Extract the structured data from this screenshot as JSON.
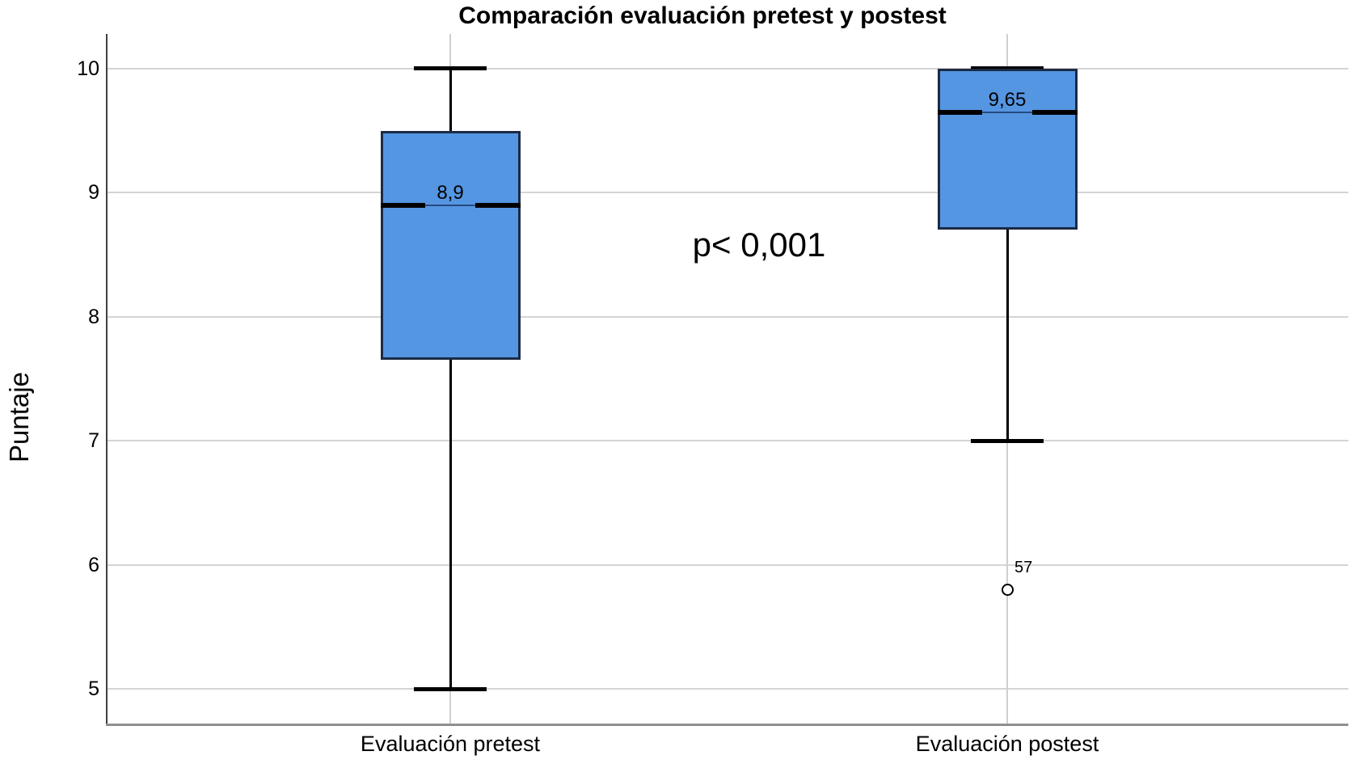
{
  "title": "Comparación evaluación pretest y postest",
  "chart_data": {
    "type": "boxplot",
    "title": "Comparación evaluación pretest y postest",
    "ylabel": "Puntaje",
    "xlabel": "",
    "annotation": "p< 0,001",
    "ylim": [
      4.72,
      10.28
    ],
    "yticks": [
      10,
      9,
      8,
      7,
      6,
      5
    ],
    "grid": "horizontal gridlines + one light vertical line per category",
    "legend": "none",
    "categories": [
      "Evaluación pretest",
      "Evaluación postest"
    ],
    "series": [
      {
        "category": "Evaluación pretest",
        "whisker_low": 5.0,
        "q1": 7.65,
        "median": 8.9,
        "q3": 9.5,
        "whisker_high": 10.0,
        "median_label": "8,9",
        "outliers": []
      },
      {
        "category": "Evaluación postest",
        "whisker_low": 7.0,
        "q1": 8.7,
        "median": 9.65,
        "q3": 10.0,
        "whisker_high": 10.0,
        "median_label": "9,65",
        "outliers": [
          {
            "value": 5.8,
            "label": "57"
          }
        ]
      }
    ]
  },
  "colors": {
    "box_fill": "#5596e2",
    "box_border": "#1c2b45",
    "median_line": "#000000",
    "median_gap_line": "#274a80",
    "whisker": "#000000",
    "outlier_stroke": "#000000",
    "gridline": "#d4d4d4",
    "category_gridline": "#cfcfcf",
    "axis_left_frame": "#404040",
    "axis_bottom_frame": "#8f8f8f",
    "text": "#000000"
  }
}
